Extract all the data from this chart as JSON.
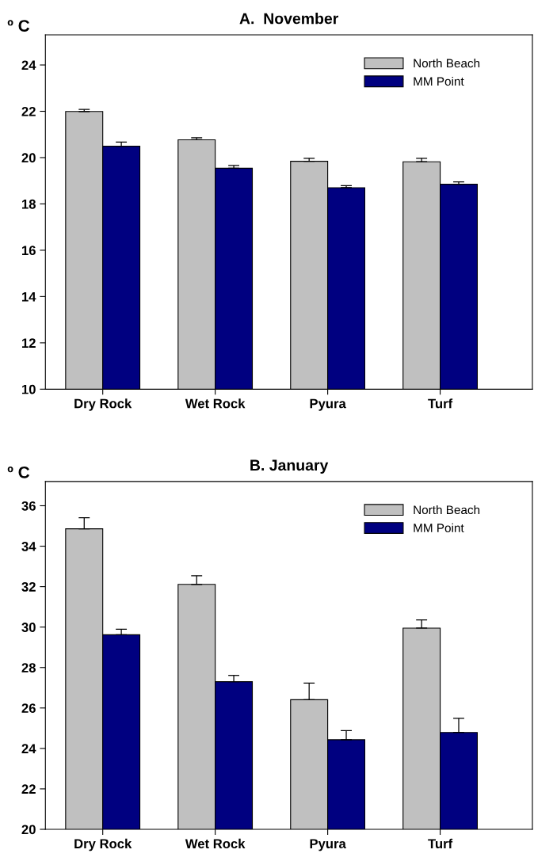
{
  "chart_data": [
    {
      "type": "bar",
      "title": "A.  November",
      "ylabel": "º C",
      "categories": [
        "Dry Rock",
        "Wet Rock",
        "Pyura",
        "Turf"
      ],
      "ylim": [
        10,
        25.3
      ],
      "yticks": [
        10,
        12,
        14,
        16,
        18,
        20,
        22,
        24
      ],
      "grid": false,
      "legend": "top right",
      "series": [
        {
          "name": "North Beach",
          "color": "#c0c0c0",
          "values": [
            21.99,
            20.77,
            19.84,
            19.82
          ],
          "errors": [
            [
              21.99,
              22.08
            ],
            [
              20.77,
              20.86
            ],
            [
              19.84,
              19.97
            ],
            [
              19.82,
              19.97
            ]
          ]
        },
        {
          "name": "MM Point",
          "color": "#000080",
          "values": [
            20.49,
            19.54,
            18.7,
            18.85
          ],
          "errors": [
            [
              20.49,
              20.67
            ],
            [
              19.54,
              19.66
            ],
            [
              18.7,
              18.79
            ],
            [
              18.85,
              18.95
            ]
          ]
        }
      ]
    },
    {
      "type": "bar",
      "title": "B. January",
      "ylabel": "º C",
      "categories": [
        "Dry Rock",
        "Wet Rock",
        "Pyura",
        "Turf"
      ],
      "ylim": [
        20,
        37.2
      ],
      "yticks": [
        20,
        22,
        24,
        26,
        28,
        30,
        32,
        34,
        36
      ],
      "grid": false,
      "legend": "top right",
      "series": [
        {
          "name": "North Beach",
          "color": "#c0c0c0",
          "values": [
            34.86,
            32.11,
            26.41,
            29.95
          ],
          "errors": [
            [
              34.86,
              35.41
            ],
            [
              32.11,
              32.54
            ],
            [
              26.41,
              27.23
            ],
            [
              29.95,
              30.35
            ]
          ]
        },
        {
          "name": "MM Point",
          "color": "#000080",
          "values": [
            29.62,
            27.3,
            24.43,
            24.79
          ],
          "errors": [
            [
              29.62,
              29.89
            ],
            [
              27.3,
              27.61
            ],
            [
              24.43,
              24.88
            ],
            [
              24.79,
              25.49
            ]
          ]
        }
      ]
    }
  ]
}
